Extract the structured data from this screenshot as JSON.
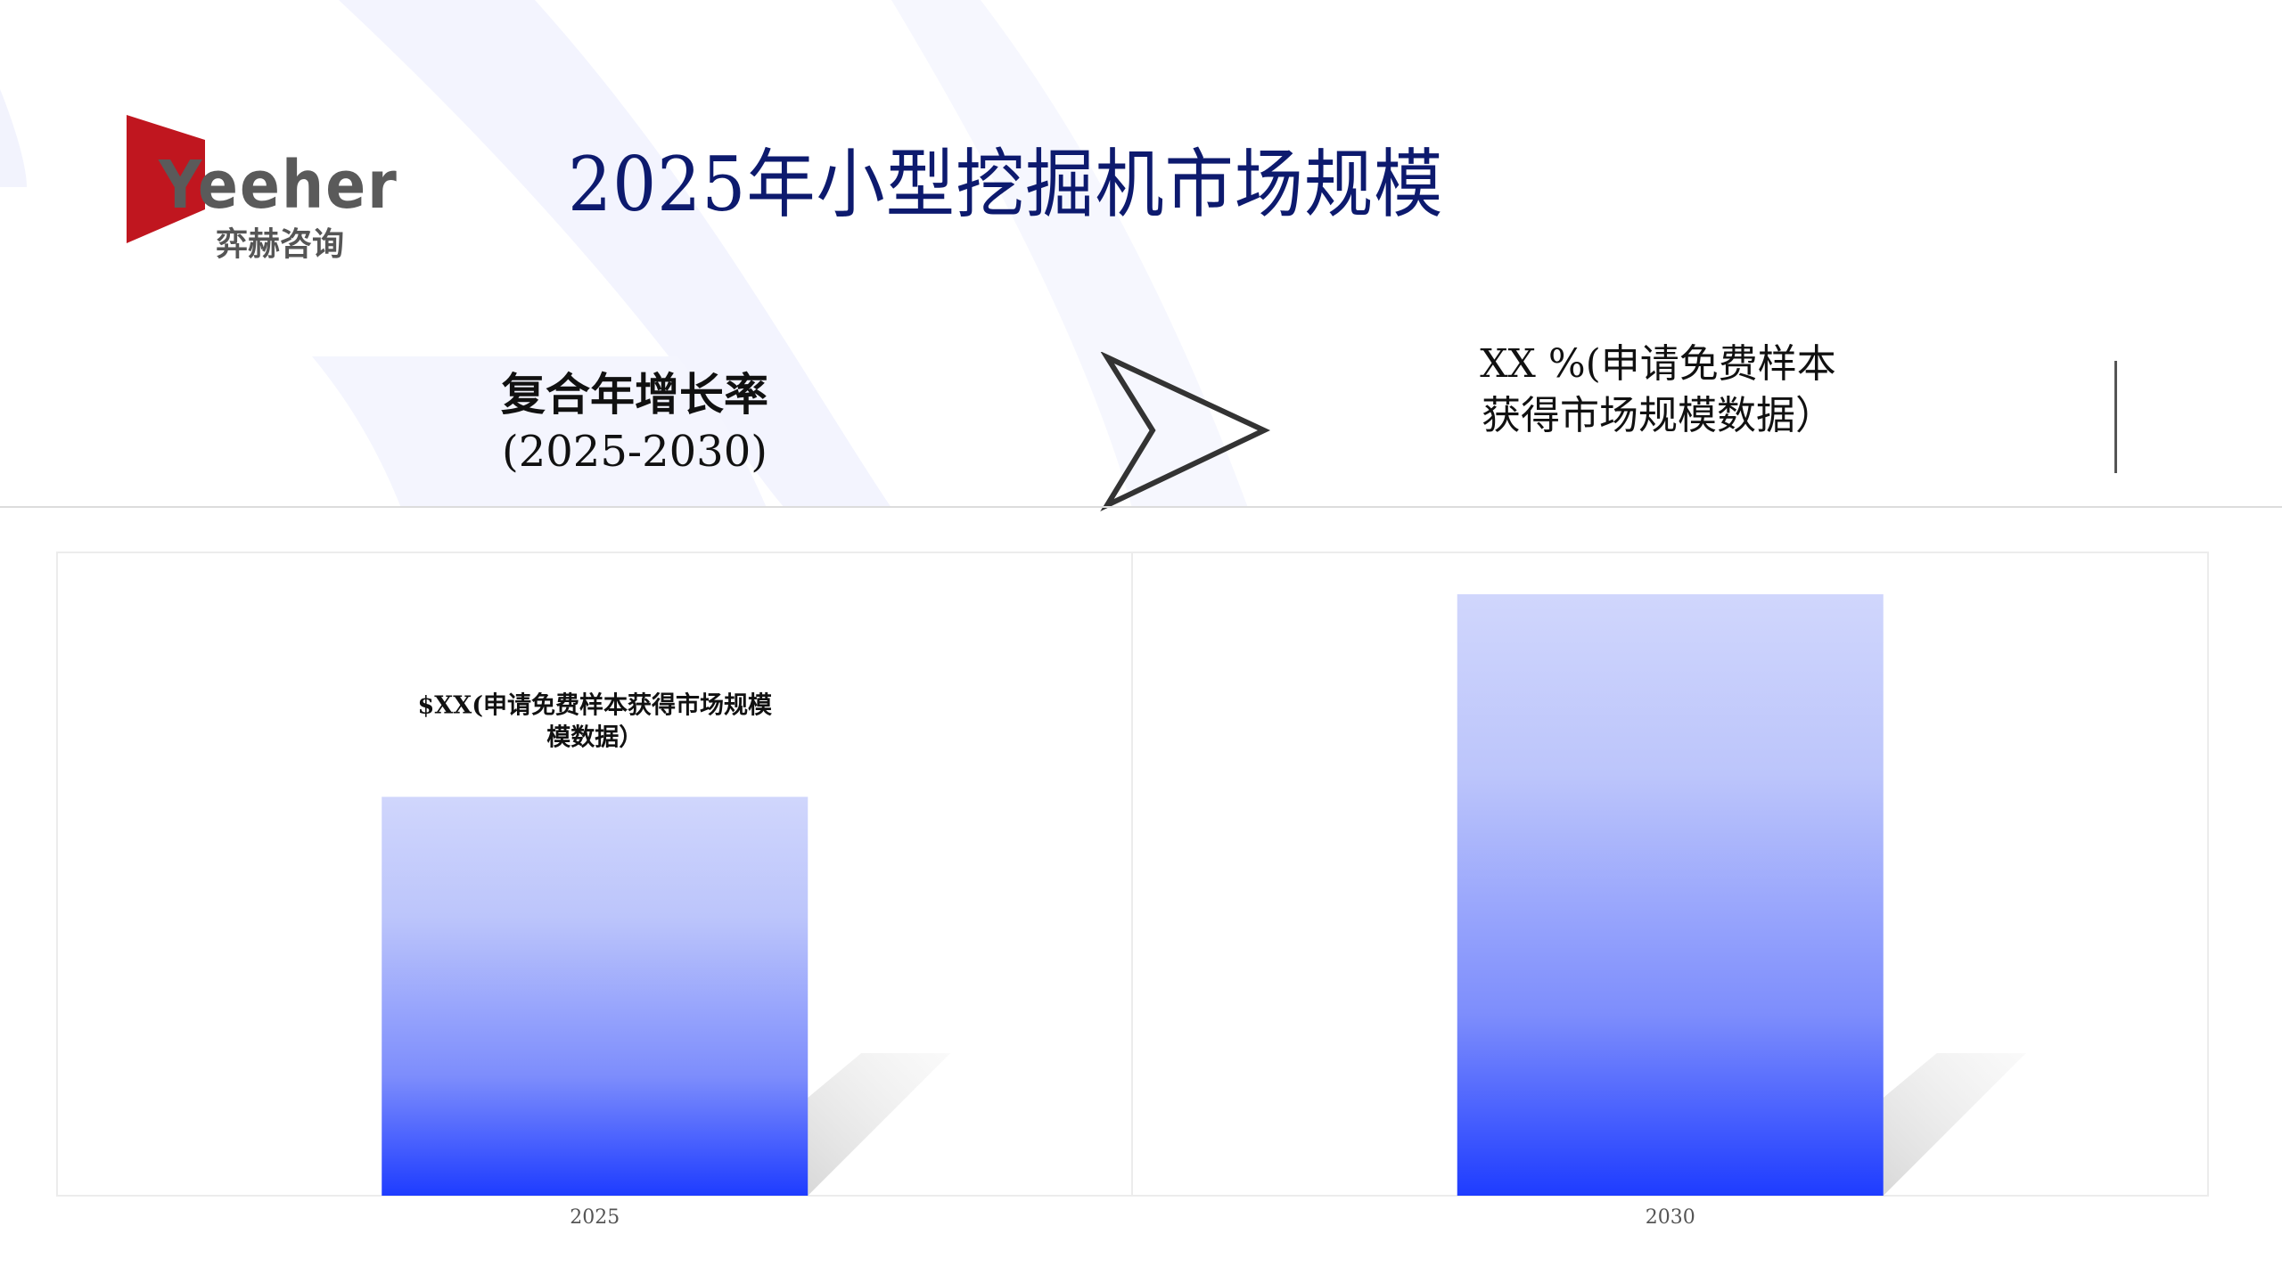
{
  "logo": {
    "brand": "Yeeher",
    "subtitle": "弈赫咨询",
    "color": "#c0161f"
  },
  "header": {
    "title": "2025年小型挖掘机市场规模"
  },
  "cagr": {
    "label": "复合年增长率",
    "period": "(2025-2030)"
  },
  "growth_value": {
    "line1": "XX %(申请免费样本",
    "line2": "获得市场规模数据）"
  },
  "chart_data": {
    "type": "bar",
    "categories": [
      "2025",
      "2030"
    ],
    "data_labels": [
      "$XX(申请免费样本获得市场规模数据）",
      ""
    ],
    "data_label_lines": [
      [
        "$XX(申请免费样本获得市场规模",
        "模数据）"
      ],
      []
    ],
    "relative_heights": [
      0.62,
      0.935
    ],
    "grid": false,
    "colors": {
      "top": "#d0d6fc",
      "bottom": "#1e3cff"
    }
  }
}
